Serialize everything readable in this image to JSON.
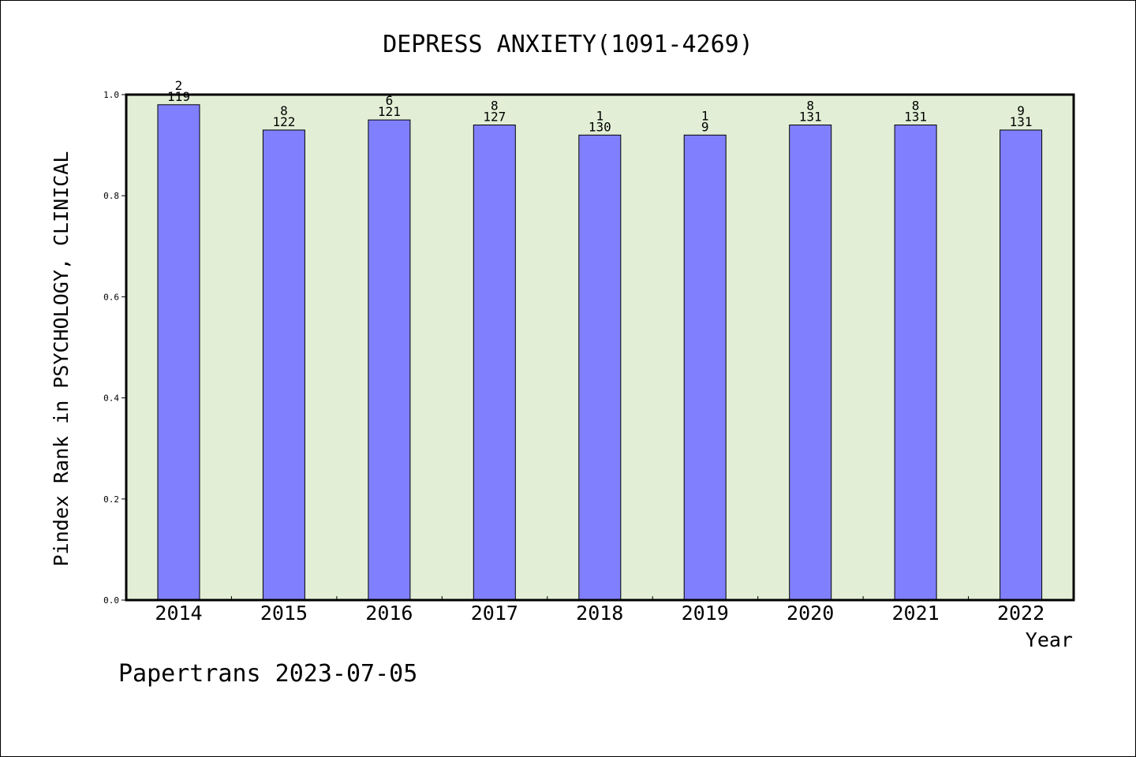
{
  "chart_data": {
    "type": "bar",
    "title": "DEPRESS ANXIETY(1091-4269)",
    "xlabel": "Year",
    "ylabel": "Pindex Rank in PSYCHOLOGY, CLINICAL",
    "ylim": [
      0,
      1.0
    ],
    "yticks": [
      "0.0",
      "0.2",
      "0.4",
      "0.6",
      "0.8",
      "1.0"
    ],
    "grid": false,
    "categories": [
      "2014",
      "2015",
      "2016",
      "2017",
      "2018",
      "2019",
      "2020",
      "2021",
      "2022"
    ],
    "values": [
      0.98,
      0.93,
      0.95,
      0.94,
      0.92,
      0.92,
      0.94,
      0.94,
      0.93
    ],
    "labels_top": [
      "2",
      "8",
      "6",
      "8",
      "1",
      "1",
      "8",
      "8",
      "9"
    ],
    "labels_bottom": [
      "119",
      "122",
      "121",
      "127",
      "130",
      "9",
      "131",
      "131",
      "131"
    ],
    "colors": {
      "bar_fill": "#8080ff",
      "plot_background": "#e2efd6",
      "axis": "#000000"
    }
  },
  "footer": {
    "text": "Papertrans 2023-07-05"
  }
}
